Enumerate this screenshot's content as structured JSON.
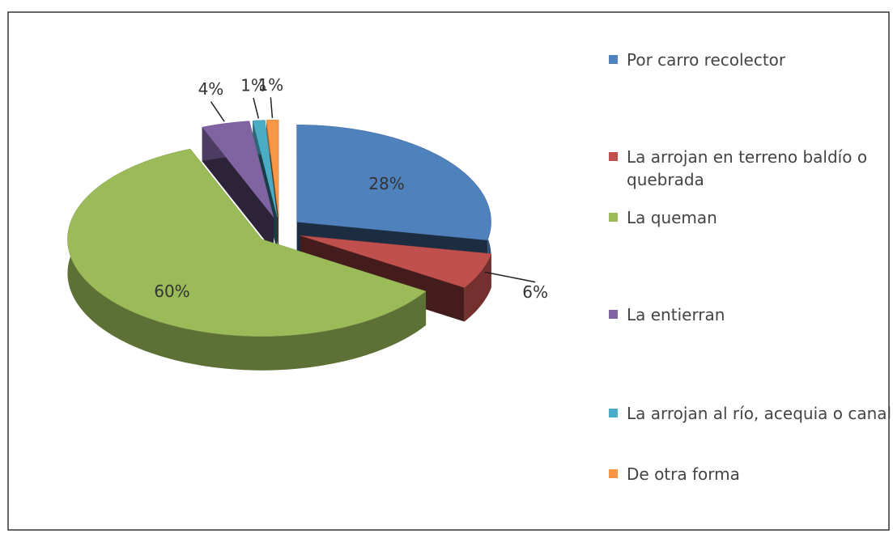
{
  "chart_data": {
    "type": "pie3d",
    "categories": [
      "Por carro recolector",
      "La arrojan en terreno baldío o quebrada",
      "La queman",
      "La entierran",
      "La arrojan al río, acequia o canal",
      "De otra forma"
    ],
    "values": [
      28,
      6,
      60,
      4,
      1,
      1
    ],
    "value_labels": [
      "28%",
      "6%",
      "60%",
      "4%",
      "1%",
      "1%"
    ],
    "colors": [
      "#4f81bd",
      "#c0504d",
      "#9bbb59",
      "#8064a2",
      "#4bacc6",
      "#f79646"
    ],
    "legend": "right"
  }
}
